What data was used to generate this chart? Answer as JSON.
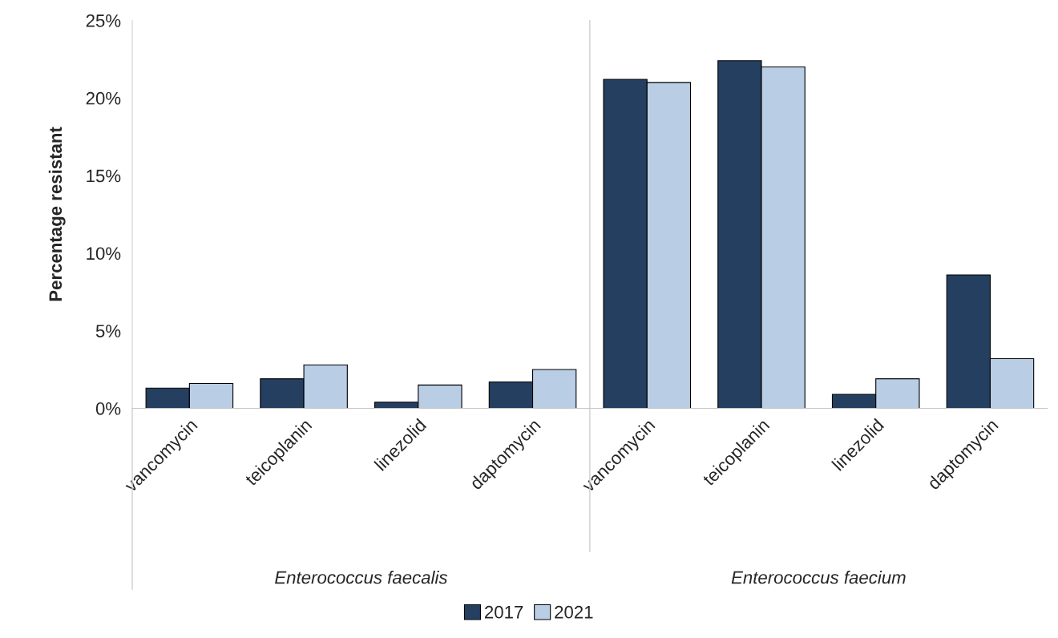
{
  "chart_data": {
    "type": "bar",
    "ylabel": "Percentage resistant",
    "categories": [
      "vancomycin",
      "teicoplanin",
      "linezolid",
      "daptomycin",
      "vancomycin",
      "teicoplanin",
      "linezolid",
      "daptomycin"
    ],
    "series": [
      {
        "name": "2017",
        "color": "#243f60",
        "values": [
          1.3,
          1.9,
          0.4,
          1.7,
          21.2,
          22.4,
          0.9,
          8.6
        ]
      },
      {
        "name": "2021",
        "color": "#b9cde5",
        "values": [
          1.6,
          2.8,
          1.5,
          2.5,
          21.0,
          22.0,
          1.9,
          3.2
        ]
      }
    ],
    "ylim": [
      0,
      25
    ],
    "yticks": [
      {
        "value": 0,
        "label": "0%"
      },
      {
        "value": 5,
        "label": "5%"
      },
      {
        "value": 10,
        "label": "10%"
      },
      {
        "value": 15,
        "label": "15%"
      },
      {
        "value": 20,
        "label": "20%"
      },
      {
        "value": 25,
        "label": "25%"
      }
    ],
    "annotations": [
      "Enterococcus faecalis",
      "Enterococcus faecium"
    ],
    "grid": false,
    "legend": "bottom"
  }
}
